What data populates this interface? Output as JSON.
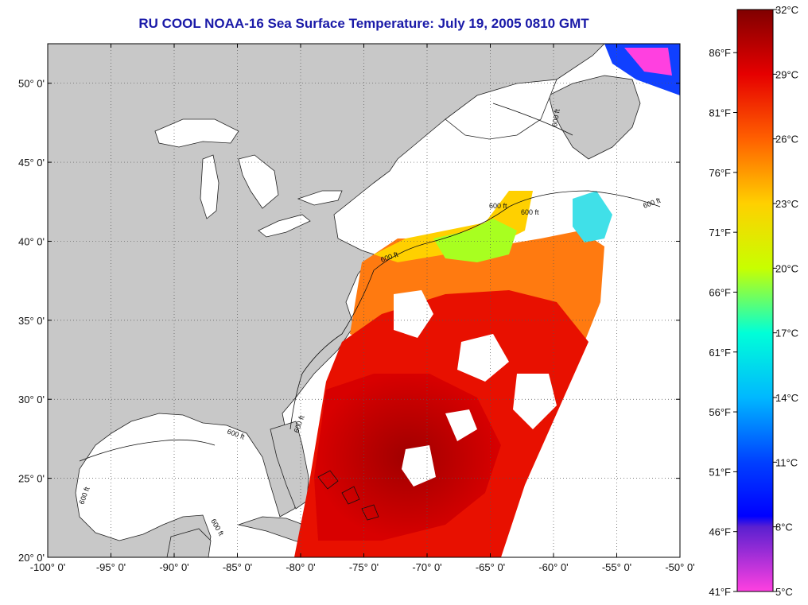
{
  "title": "RU COOL  NOAA-16  Sea Surface Temperature:  July 19, 2005 0810 GMT",
  "map": {
    "lon_range": [
      -100,
      -50
    ],
    "lat_range": [
      20,
      52.5
    ],
    "lon_ticks": [
      {
        "value": -100,
        "label": "-100° 0'"
      },
      {
        "value": -95,
        "label": "-95° 0'"
      },
      {
        "value": -90,
        "label": "-90° 0'"
      },
      {
        "value": -85,
        "label": "-85° 0'"
      },
      {
        "value": -80,
        "label": "-80° 0'"
      },
      {
        "value": -75,
        "label": "-75° 0'"
      },
      {
        "value": -70,
        "label": "-70° 0'"
      },
      {
        "value": -65,
        "label": "-65° 0'"
      },
      {
        "value": -60,
        "label": "-60° 0'"
      },
      {
        "value": -55,
        "label": "-55° 0'"
      },
      {
        "value": -50,
        "label": "-50° 0'"
      }
    ],
    "lat_ticks": [
      {
        "value": 20,
        "label": "20° 0'"
      },
      {
        "value": 25,
        "label": "25° 0'"
      },
      {
        "value": 30,
        "label": "30° 0'"
      },
      {
        "value": 35,
        "label": "35° 0'"
      },
      {
        "value": 40,
        "label": "40° 0'"
      },
      {
        "value": 45,
        "label": "45° 0'"
      },
      {
        "value": 50,
        "label": "50° 0'"
      }
    ],
    "grid": "dotted",
    "contour_label": "600 ft",
    "colors": {
      "land": "#c8c8c8",
      "cloud_or_no_data": "#ffffff"
    }
  },
  "colorbar": {
    "min_c": 5,
    "max_c": 32,
    "celsius_ticks": [
      {
        "value": 32,
        "label": "32°C"
      },
      {
        "value": 29,
        "label": "29°C"
      },
      {
        "value": 26,
        "label": "26°C"
      },
      {
        "value": 23,
        "label": "23°C"
      },
      {
        "value": 20,
        "label": "20°C"
      },
      {
        "value": 17,
        "label": "17°C"
      },
      {
        "value": 14,
        "label": "14°C"
      },
      {
        "value": 11,
        "label": "11°C"
      },
      {
        "value": 8,
        "label": "8°C"
      },
      {
        "value": 5,
        "label": "5°C"
      }
    ],
    "fahrenheit_ticks": [
      {
        "value": 86,
        "label": "86°F"
      },
      {
        "value": 81,
        "label": "81°F"
      },
      {
        "value": 76,
        "label": "76°F"
      },
      {
        "value": 71,
        "label": "71°F"
      },
      {
        "value": 66,
        "label": "66°F"
      },
      {
        "value": 61,
        "label": "61°F"
      },
      {
        "value": 56,
        "label": "56°F"
      },
      {
        "value": 51,
        "label": "51°F"
      },
      {
        "value": 46,
        "label": "46°F"
      },
      {
        "value": 41,
        "label": "41°F"
      }
    ],
    "gradient": [
      {
        "c": 32,
        "color": "#800000"
      },
      {
        "c": 29,
        "color": "#e60000"
      },
      {
        "c": 26,
        "color": "#ff6000"
      },
      {
        "c": 23,
        "color": "#ffd000"
      },
      {
        "c": 20,
        "color": "#c8ff00"
      },
      {
        "c": 17,
        "color": "#00ffd8"
      },
      {
        "c": 14,
        "color": "#00b8ff"
      },
      {
        "c": 11,
        "color": "#0040ff"
      },
      {
        "c": 8.5,
        "color": "#0000ff"
      },
      {
        "c": 8,
        "color": "#5a20d0"
      },
      {
        "c": 5,
        "color": "#ff40e0"
      }
    ]
  }
}
